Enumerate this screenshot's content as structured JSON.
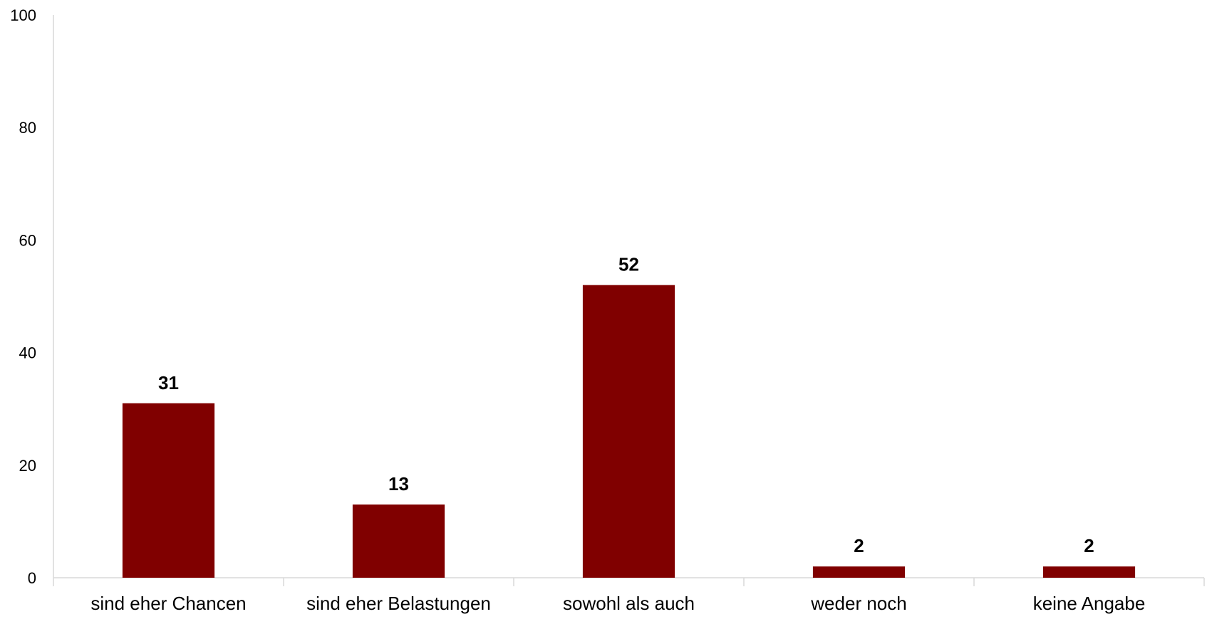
{
  "chart_data": {
    "type": "bar",
    "title": "",
    "xlabel": "",
    "ylabel": "",
    "categories": [
      "sind eher Chancen",
      "sind eher Belastungen",
      "sowohl als auch",
      "weder noch",
      "keine Angabe"
    ],
    "values": [
      31,
      13,
      52,
      2,
      2
    ],
    "ylim": [
      0,
      100
    ],
    "yticks": [
      0,
      20,
      40,
      60,
      80,
      100
    ],
    "grid": false,
    "legend": "none",
    "bar_color": "#800000",
    "axis_color": "#d9d9d9"
  }
}
